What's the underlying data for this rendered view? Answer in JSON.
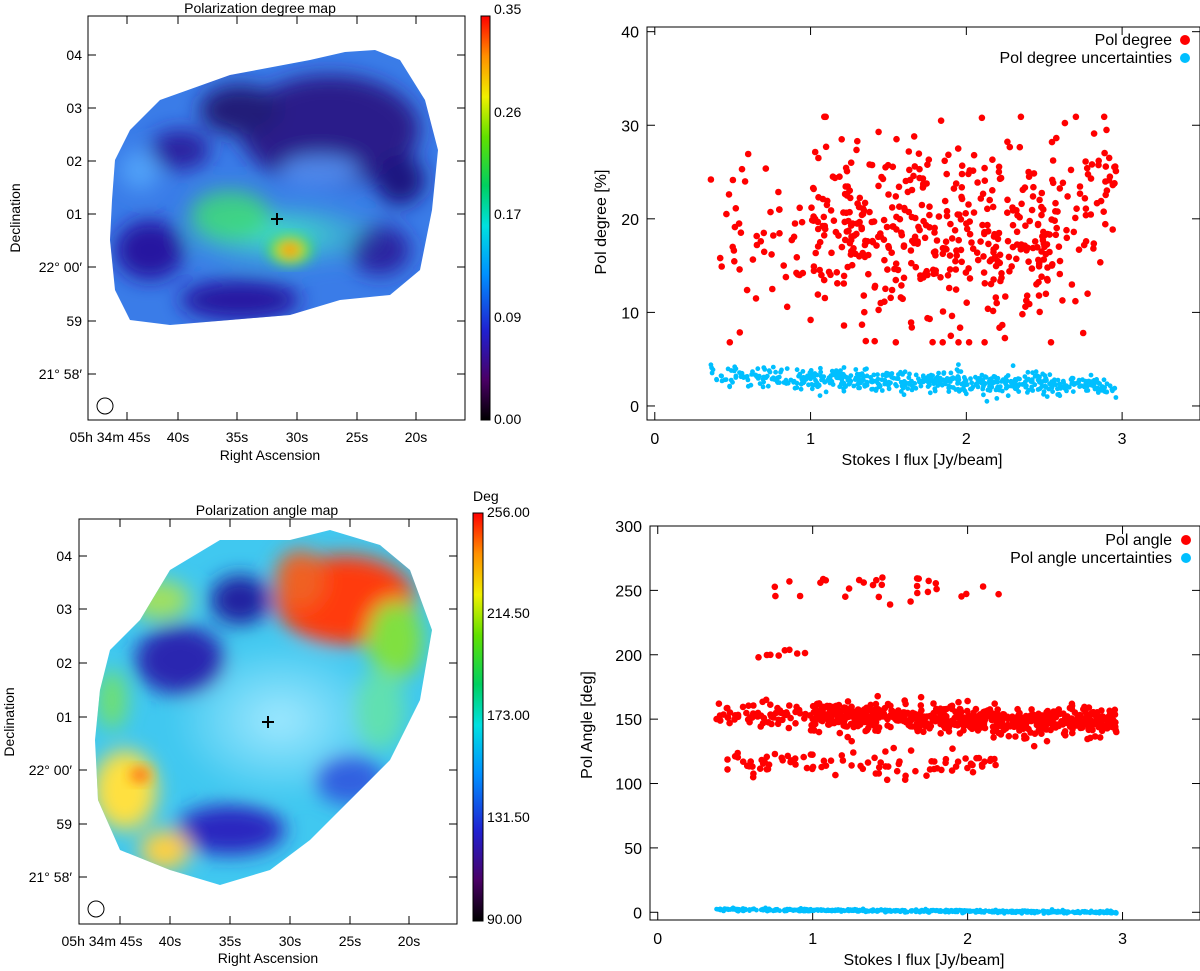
{
  "chart_data": [
    {
      "type": "heatmap",
      "panel": "top-left",
      "title": "Polarization degree map",
      "xlabel": "Right Ascension",
      "ylabel": "Declination",
      "x_ticks": [
        "05h 34m 45s",
        "40s",
        "35s",
        "30s",
        "25s",
        "20s"
      ],
      "y_ticks": [
        "04",
        "03",
        "02",
        "01",
        "22° 00′",
        "59",
        "21° 58′"
      ],
      "colorbar": {
        "label": "",
        "ticks": [
          "0.35",
          "0.26",
          "0.17",
          "0.09",
          "0.00"
        ],
        "range": [
          0.0,
          0.35
        ],
        "colormap": "rainbow"
      },
      "marker": "+",
      "hotspot_value": 0.33,
      "background_level": 0.05
    },
    {
      "type": "scatter",
      "panel": "top-right",
      "title": "",
      "xlabel": "Stokes I flux [Jy/beam]",
      "ylabel": "Pol degree [%]",
      "xlim": [
        -0.05,
        3.5
      ],
      "ylim": [
        -1.5,
        40.5
      ],
      "x_ticks": [
        0,
        1,
        2,
        3
      ],
      "y_ticks": [
        0,
        10,
        20,
        30,
        40
      ],
      "legend_position": "top-right",
      "grid": false,
      "series": [
        {
          "name": "Pol degree",
          "color": "#ff0000",
          "x_range": [
            0.36,
            2.96
          ],
          "y_range": [
            6.8,
            30.9
          ],
          "points": [
            [
              0.36,
              24.2
            ],
            [
              0.42,
              15.8
            ],
            [
              0.46,
              20.5
            ],
            [
              0.5,
              17.0
            ],
            [
              0.56,
              25.3
            ],
            [
              0.58,
              24.0
            ],
            [
              0.65,
              11.5
            ],
            [
              0.7,
              18.5
            ],
            [
              0.75,
              16.2
            ],
            [
              0.8,
              21.0
            ],
            [
              0.85,
              10.6
            ],
            [
              0.9,
              19.5
            ],
            [
              0.95,
              14.2
            ],
            [
              1.0,
              9.2
            ],
            [
              1.02,
              23.2
            ],
            [
              1.05,
              26.5
            ],
            [
              1.1,
              27.7
            ],
            [
              1.15,
              19.8
            ],
            [
              1.2,
              28.5
            ],
            [
              1.25,
              23.0
            ],
            [
              1.3,
              28.3
            ],
            [
              1.35,
              21.7
            ],
            [
              1.4,
              17.5
            ],
            [
              1.45,
              11.0
            ],
            [
              1.5,
              22.6
            ],
            [
              1.55,
              15.2
            ],
            [
              1.6,
              13.7
            ],
            [
              1.65,
              8.4
            ],
            [
              1.7,
              18.8
            ],
            [
              1.75,
              14.0
            ],
            [
              1.8,
              16.5
            ],
            [
              1.85,
              10.1
            ],
            [
              1.9,
              7.5
            ],
            [
              1.95,
              6.8
            ],
            [
              2.0,
              19.5
            ],
            [
              2.05,
              26.8
            ],
            [
              2.1,
              30.8
            ],
            [
              2.15,
              22.0
            ],
            [
              2.2,
              15.5
            ],
            [
              2.25,
              11.7
            ],
            [
              2.3,
              20.9
            ],
            [
              2.35,
              30.9
            ],
            [
              2.4,
              25.0
            ],
            [
              2.45,
              13.0
            ],
            [
              2.5,
              18.2
            ],
            [
              2.55,
              28.2
            ],
            [
              2.6,
              14.1
            ],
            [
              2.65,
              22.4
            ],
            [
              2.7,
              11.2
            ],
            [
              2.75,
              7.8
            ],
            [
              2.8,
              24.3
            ],
            [
              2.85,
              26.2
            ],
            [
              2.9,
              29.5
            ],
            [
              2.94,
              23.6
            ],
            [
              2.96,
              25.1
            ]
          ]
        },
        {
          "name": "Pol degree uncertainties",
          "color": "#00bfff",
          "x_range": [
            0.36,
            2.96
          ],
          "y_range": [
            0.5,
            4.5
          ],
          "points": [
            [
              0.36,
              4.4
            ],
            [
              0.45,
              2.8
            ],
            [
              0.55,
              3.5
            ],
            [
              0.6,
              2.1
            ],
            [
              0.7,
              3.1
            ],
            [
              0.8,
              2.5
            ],
            [
              0.9,
              1.9
            ],
            [
              1.0,
              2.9
            ],
            [
              1.1,
              1.5
            ],
            [
              1.2,
              2.4
            ],
            [
              1.3,
              3.4
            ],
            [
              1.4,
              1.8
            ],
            [
              1.5,
              2.2
            ],
            [
              1.6,
              1.2
            ],
            [
              1.7,
              2.6
            ],
            [
              1.8,
              1.6
            ],
            [
              1.9,
              2.9
            ],
            [
              2.0,
              1.3
            ],
            [
              2.1,
              3.3
            ],
            [
              2.2,
              2.0
            ],
            [
              2.3,
              4.3
            ],
            [
              2.4,
              1.7
            ],
            [
              2.5,
              2.7
            ],
            [
              2.6,
              1.1
            ],
            [
              2.7,
              2.4
            ],
            [
              2.8,
              3.3
            ],
            [
              2.9,
              1.5
            ],
            [
              2.96,
              0.9
            ]
          ]
        }
      ]
    },
    {
      "type": "heatmap",
      "panel": "bottom-left",
      "title": "Polarization angle map",
      "xlabel": "Right Ascension",
      "ylabel": "Declination",
      "x_ticks": [
        "05h 34m 45s",
        "40s",
        "35s",
        "30s",
        "25s",
        "20s"
      ],
      "y_ticks": [
        "04",
        "03",
        "02",
        "01",
        "22° 00′",
        "59",
        "21° 58′"
      ],
      "colorbar": {
        "label": "Deg",
        "ticks": [
          "256.00",
          "214.50",
          "173.00",
          "131.50",
          "90.00"
        ],
        "range": [
          90.0,
          256.0
        ],
        "colormap": "rainbow"
      },
      "marker": "+"
    },
    {
      "type": "scatter",
      "panel": "bottom-right",
      "title": "",
      "xlabel": "Stokes I flux [Jy/beam]",
      "ylabel": "Pol Angle [deg]",
      "xlim": [
        -0.05,
        3.5
      ],
      "ylim": [
        -6,
        300
      ],
      "x_ticks": [
        0,
        1,
        2,
        3
      ],
      "y_ticks": [
        0,
        50,
        100,
        150,
        200,
        250,
        300
      ],
      "legend_position": "top-right",
      "grid": false,
      "series": [
        {
          "name": "Pol angle",
          "color": "#ff0000",
          "clusters": [
            {
              "x_range": [
                0.38,
                2.96
              ],
              "y_center": 150,
              "y_spread": 10
            },
            {
              "x_range": [
                0.45,
                2.2
              ],
              "y_center": 115,
              "y_spread": 10
            },
            {
              "x_range": [
                0.7,
                2.1
              ],
              "y_center": 252,
              "y_spread": 8
            },
            {
              "x_range": [
                0.65,
                1.0
              ],
              "y_center": 202,
              "y_spread": 5
            }
          ],
          "points": [
            [
              0.38,
              150
            ],
            [
              0.45,
              111
            ],
            [
              0.5,
              153
            ],
            [
              0.6,
              117
            ],
            [
              0.65,
              198
            ],
            [
              0.7,
              165
            ],
            [
              0.8,
              120
            ],
            [
              0.85,
              257
            ],
            [
              0.9,
              201
            ],
            [
              1.0,
              150
            ],
            [
              1.05,
              256
            ],
            [
              1.2,
              145
            ],
            [
              1.3,
              258
            ],
            [
              1.4,
              120
            ],
            [
              1.45,
              260
            ],
            [
              1.5,
              239
            ],
            [
              1.6,
              106
            ],
            [
              1.7,
              167
            ],
            [
              1.8,
              251
            ],
            [
              1.9,
              110
            ],
            [
              2.0,
              164
            ],
            [
              2.1,
              253
            ],
            [
              2.15,
              119
            ],
            [
              2.2,
              247
            ],
            [
              2.3,
              150
            ],
            [
              2.43,
              129
            ],
            [
              2.5,
              144
            ],
            [
              2.7,
              145
            ],
            [
              2.9,
              143
            ],
            [
              2.96,
              140
            ]
          ]
        },
        {
          "name": "Pol angle uncertainties",
          "color": "#00bfff",
          "x_range": [
            0.38,
            2.96
          ],
          "y_range": [
            -2,
            3
          ],
          "points": [
            [
              0.38,
              2.5
            ],
            [
              0.5,
              2.5
            ],
            [
              0.7,
              2.0
            ],
            [
              0.9,
              1.8
            ],
            [
              1.1,
              1.2
            ],
            [
              1.3,
              1.5
            ],
            [
              1.5,
              1.0
            ],
            [
              1.7,
              0.8
            ],
            [
              1.9,
              1.1
            ],
            [
              2.1,
              0.6
            ],
            [
              2.3,
              0.4
            ],
            [
              2.5,
              0.2
            ],
            [
              2.7,
              0.0
            ],
            [
              2.9,
              -0.5
            ],
            [
              2.96,
              -0.8
            ]
          ]
        }
      ]
    }
  ]
}
